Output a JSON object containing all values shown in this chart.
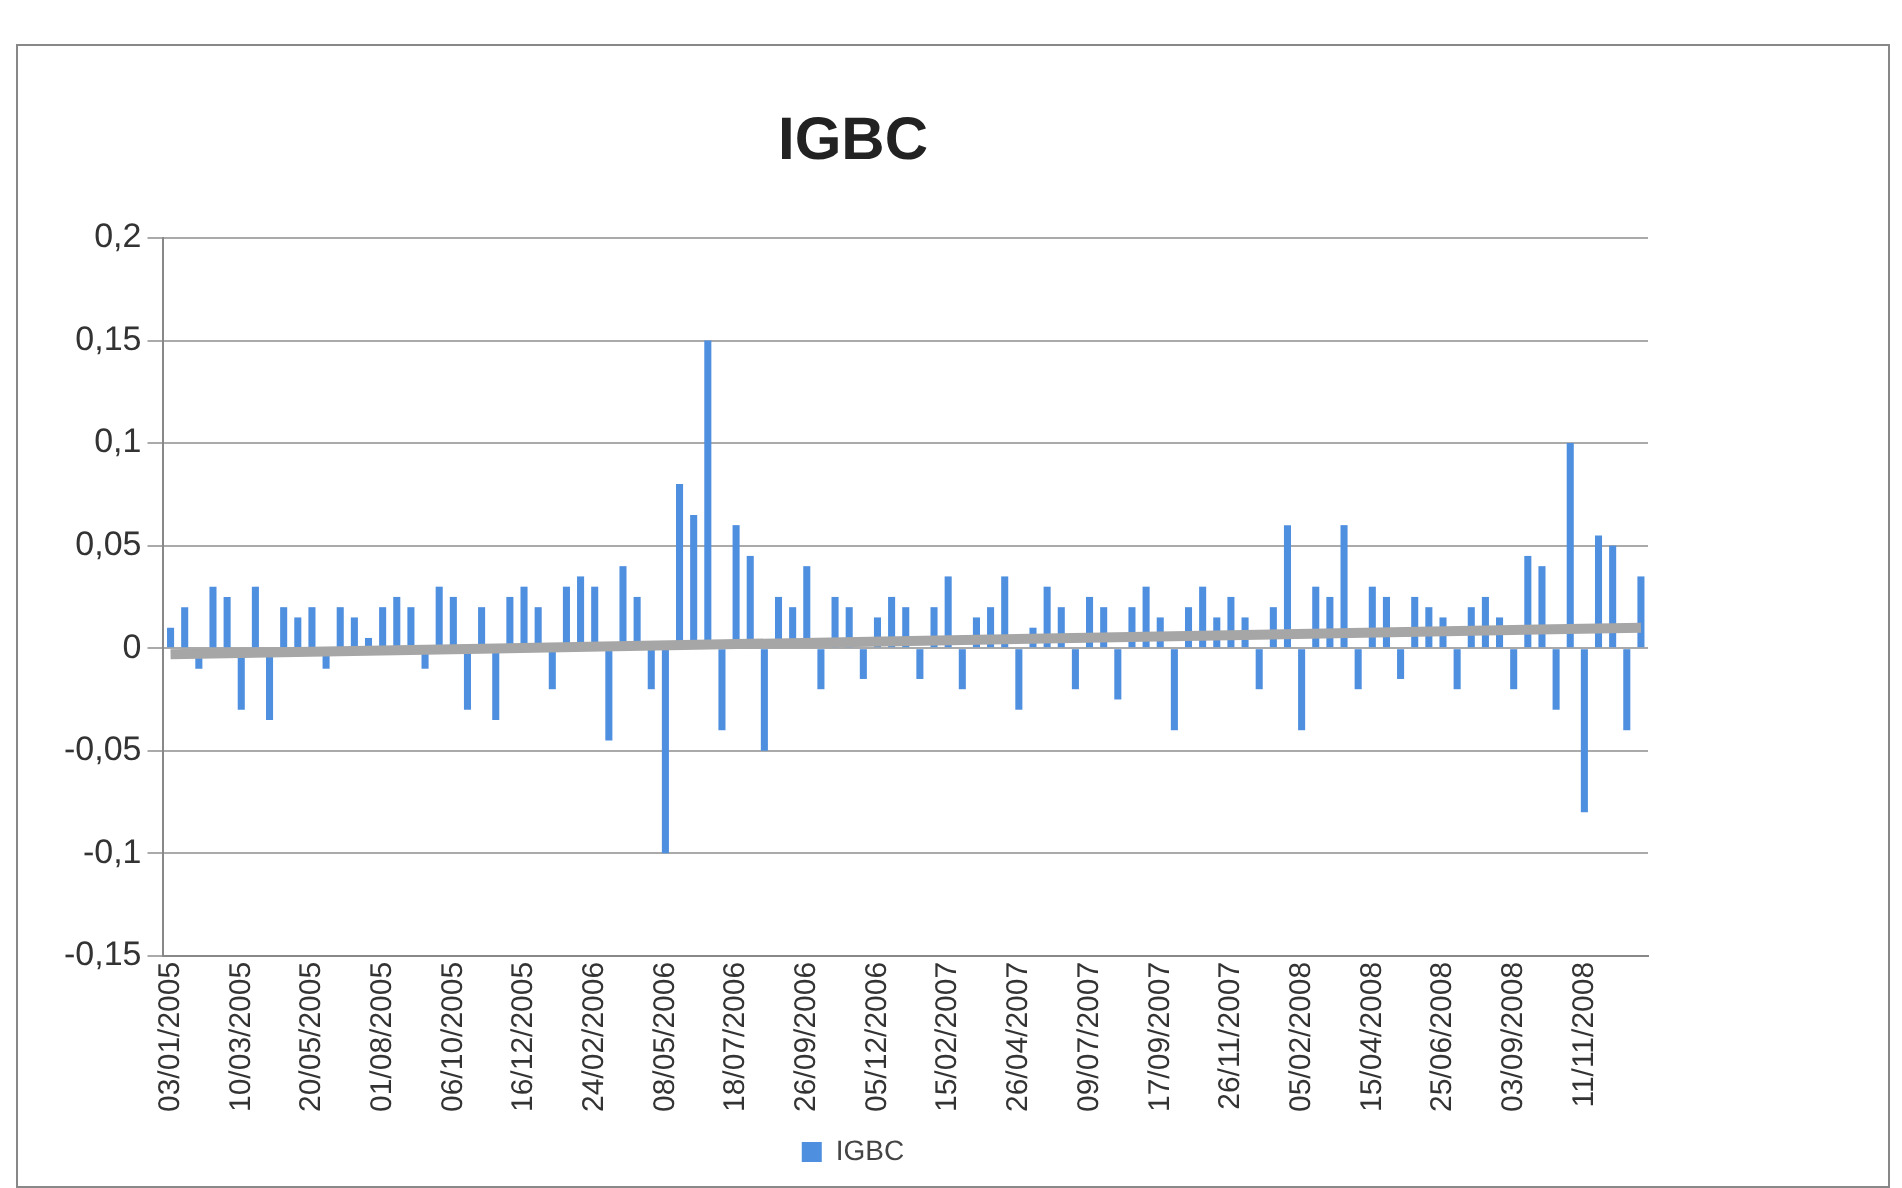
{
  "chart_data": {
    "type": "bar",
    "title": "IGBC",
    "categories": [
      "03/01/2005",
      null,
      null,
      null,
      null,
      "10/03/2005",
      null,
      null,
      null,
      null,
      "20/05/2005",
      null,
      null,
      null,
      null,
      "01/08/2005",
      null,
      null,
      null,
      null,
      "06/10/2005",
      null,
      null,
      null,
      null,
      "16/12/2005",
      null,
      null,
      null,
      null,
      "24/02/2006",
      null,
      null,
      null,
      null,
      "08/05/2006",
      null,
      null,
      null,
      null,
      "18/07/2006",
      null,
      null,
      null,
      null,
      "26/09/2006",
      null,
      null,
      null,
      null,
      "05/12/2006",
      null,
      null,
      null,
      null,
      "15/02/2007",
      null,
      null,
      null,
      null,
      "26/04/2007",
      null,
      null,
      null,
      null,
      "09/07/2007",
      null,
      null,
      null,
      null,
      "17/09/2007",
      null,
      null,
      null,
      null,
      "26/11/2007",
      null,
      null,
      null,
      null,
      "05/02/2008",
      null,
      null,
      null,
      null,
      "15/04/2008",
      null,
      null,
      null,
      null,
      "25/06/2008",
      null,
      null,
      null,
      null,
      "03/09/2008",
      null,
      null,
      null,
      null,
      "11/11/2008",
      null,
      null,
      null,
      null
    ],
    "series": [
      {
        "name": "IGBC",
        "color": "#4f8fdf",
        "values": [
          0.01,
          0.02,
          -0.01,
          0.03,
          0.025,
          -0.03,
          0.03,
          -0.035,
          0.02,
          0.015,
          0.02,
          -0.01,
          0.02,
          0.015,
          0.005,
          0.02,
          0.025,
          0.02,
          -0.01,
          0.03,
          0.025,
          -0.03,
          0.02,
          -0.035,
          0.025,
          0.03,
          0.02,
          -0.02,
          0.03,
          0.035,
          0.03,
          -0.045,
          0.04,
          0.025,
          -0.02,
          -0.1,
          0.08,
          0.065,
          0.15,
          -0.04,
          0.06,
          0.045,
          -0.05,
          0.025,
          0.02,
          0.04,
          -0.02,
          0.025,
          0.02,
          -0.015,
          0.015,
          0.025,
          0.02,
          -0.015,
          0.02,
          0.035,
          -0.02,
          0.015,
          0.02,
          0.035,
          -0.03,
          0.01,
          0.03,
          0.02,
          -0.02,
          0.025,
          0.02,
          -0.025,
          0.02,
          0.03,
          0.015,
          -0.04,
          0.02,
          0.03,
          0.015,
          0.025,
          0.015,
          -0.02,
          0.02,
          0.06,
          -0.04,
          0.03,
          0.025,
          0.06,
          -0.02,
          0.03,
          0.025,
          -0.015,
          0.025,
          0.02,
          0.015,
          -0.02,
          0.02,
          0.025,
          0.015,
          -0.02,
          0.045,
          0.04,
          -0.03,
          0.1,
          -0.08,
          0.055,
          0.05,
          -0.04,
          0.035
        ]
      },
      {
        "type": "line",
        "color": "#a6a6a6",
        "values": [
          -0.003,
          null,
          null,
          null,
          null,
          null,
          null,
          null,
          null,
          null,
          null,
          null,
          null,
          null,
          null,
          null,
          null,
          null,
          null,
          null,
          null,
          null,
          null,
          null,
          null,
          null,
          null,
          null,
          null,
          null,
          null,
          null,
          null,
          null,
          null,
          null,
          null,
          null,
          null,
          null,
          null,
          null,
          null,
          null,
          null,
          null,
          null,
          null,
          null,
          null,
          null,
          null,
          null,
          null,
          null,
          null,
          null,
          null,
          null,
          null,
          null,
          null,
          null,
          null,
          null,
          null,
          null,
          null,
          null,
          null,
          null,
          null,
          null,
          null,
          null,
          null,
          null,
          null,
          null,
          null,
          null,
          null,
          null,
          null,
          null,
          null,
          null,
          null,
          null,
          null,
          null,
          null,
          null,
          null,
          null,
          null,
          null,
          null,
          null,
          null,
          null,
          null,
          null,
          null,
          0.01
        ]
      }
    ],
    "ylim": [
      -0.15,
      0.2
    ],
    "yticks": [
      {
        "value": -0.15,
        "label": "-0,15"
      },
      {
        "value": -0.1,
        "label": "-0,1"
      },
      {
        "value": -0.05,
        "label": "-0,05"
      },
      0,
      {
        "value": 0.05,
        "label": "0,05"
      },
      {
        "value": 0.1,
        "label": "0,1"
      },
      {
        "value": 0.15,
        "label": "0,15"
      },
      {
        "value": 0.2,
        "label": "0,2"
      }
    ],
    "grid": "y",
    "legend": "bottom"
  }
}
